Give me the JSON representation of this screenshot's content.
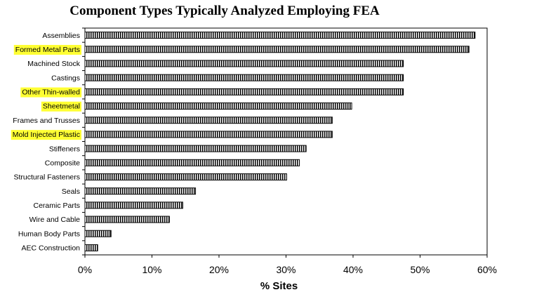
{
  "chart_data": {
    "type": "bar",
    "orientation": "horizontal",
    "title": "Component Types Typically Analyzed Employing FEA",
    "xlabel": "% Sites",
    "ylabel": "",
    "xlim": [
      0,
      60
    ],
    "x_ticks": [
      "0%",
      "10%",
      "20%",
      "30%",
      "40%",
      "50%",
      "60%"
    ],
    "x_tick_values": [
      0,
      10,
      20,
      30,
      40,
      50,
      60
    ],
    "grid": false,
    "bar_fill": "vertical-hatch",
    "highlight_color": "#FFFF33",
    "categories": [
      "Assemblies",
      "Formed Metal Parts",
      "Machined Stock",
      "Castings",
      "Other Thin-walled",
      "Sheetmetal",
      "Frames and Trusses",
      "Mold Injected Plastic",
      "Stiffeners",
      "Composite",
      "Structural Fasteners",
      "Seals",
      "Ceramic Parts",
      "Wire and Cable",
      "Human Body Parts",
      "AEC Construction"
    ],
    "highlighted": [
      "Formed Metal Parts",
      "Other Thin-walled",
      "Sheetmetal",
      "Mold Injected Plastic"
    ],
    "values": [
      58.2,
      57.3,
      47.5,
      47.5,
      47.5,
      39.8,
      36.9,
      36.9,
      33.0,
      32.0,
      30.1,
      16.5,
      14.6,
      12.6,
      3.9,
      1.9
    ]
  }
}
